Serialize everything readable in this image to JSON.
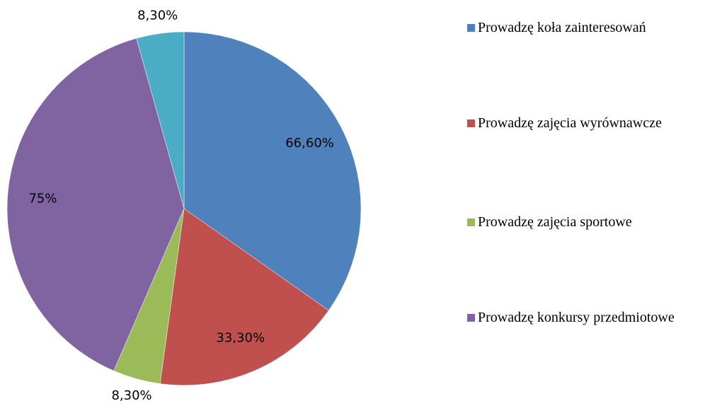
{
  "chart_data": {
    "type": "pie",
    "categories": [
      "Prowadzę koła zainteresowań",
      "Prowadzę zajęcia wyrównawcze",
      "Prowadzę zajęcia sportowe",
      "Prowadzę konkursy przedmiotowe",
      null
    ],
    "values": [
      66.6,
      33.3,
      8.3,
      75,
      8.3
    ],
    "value_labels": [
      "66,60%",
      "33,30%",
      "8,30%",
      "75%",
      "8,30%"
    ],
    "colors": [
      "#4f81bd",
      "#c0504d",
      "#9bbb59",
      "#8064a2",
      "#4bacc6"
    ],
    "legend": "right"
  }
}
